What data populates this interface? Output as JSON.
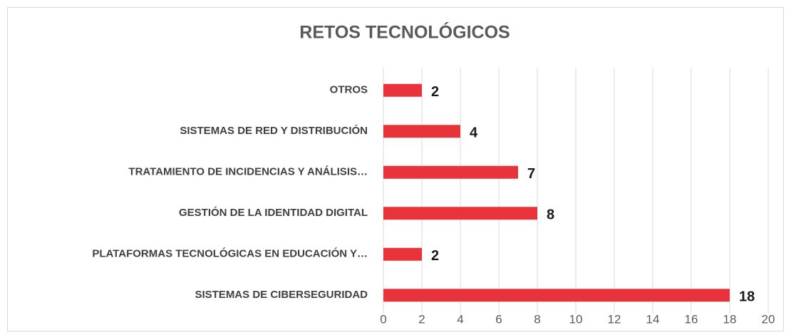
{
  "chart_data": {
    "type": "barh",
    "title": "RETOS TECNOLÓGICOS",
    "categories": [
      "OTROS",
      "SISTEMAS DE RED Y DISTRIBUCIÓN",
      "TRATAMIENTO DE INCIDENCIAS Y ANÁLISIS…",
      "GESTIÓN DE LA IDENTIDAD DIGITAL",
      "PLATAFORMAS TECNOLÓGICAS EN EDUCACIÓN Y…",
      "SISTEMAS DE CIBERSEGURIDAD"
    ],
    "values": [
      2,
      4,
      7,
      8,
      2,
      18
    ],
    "color": "#e8333a",
    "xlim": [
      0,
      20
    ],
    "xticks": [
      0,
      2,
      4,
      6,
      8,
      10,
      12,
      14,
      16,
      18,
      20
    ],
    "grid": true
  }
}
